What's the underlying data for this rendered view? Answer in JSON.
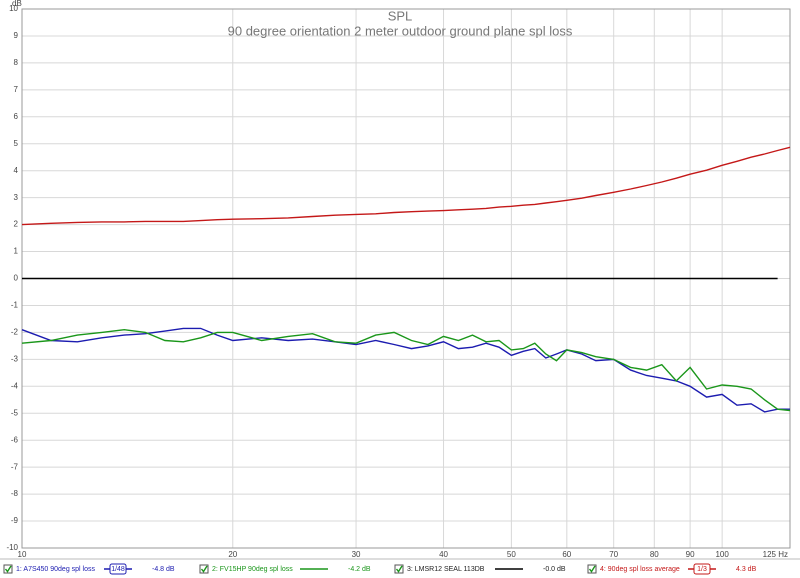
{
  "chart_data": {
    "type": "line",
    "title": "SPL",
    "subtitle": "90 degree orientation 2 meter outdoor ground plane spl loss",
    "y_label": "dB",
    "xscale": "log",
    "grid": true,
    "xlim": [
      10,
      125
    ],
    "ylim": [
      -10,
      10
    ],
    "xticks": [
      10,
      20,
      30,
      40,
      50,
      60,
      70,
      80,
      90,
      100,
      {
        "value": 125,
        "label": "125 Hz"
      }
    ],
    "yticks": [
      -10,
      -9,
      -8,
      -7,
      -6,
      -5,
      -4,
      -3,
      -2,
      -1,
      0,
      1,
      2,
      3,
      4,
      5,
      6,
      7,
      8,
      9,
      10
    ],
    "legend": "bottom",
    "x": [
      10,
      11,
      12,
      13,
      14,
      15,
      16,
      17,
      18,
      19,
      20,
      22,
      24,
      26,
      28,
      30,
      32,
      34,
      36,
      38,
      40,
      42,
      44,
      46,
      48,
      50,
      52,
      54,
      56,
      58,
      60,
      63,
      66,
      70,
      74,
      78,
      82,
      86,
      90,
      95,
      100,
      105,
      110,
      115,
      120,
      125
    ],
    "series": [
      {
        "name": "1: A7S450 90deg spl loss",
        "color": "#1c1cb0",
        "smoothing": "1/48",
        "legend_value": "-4.8 dB",
        "values": [
          -1.9,
          -2.3,
          -2.35,
          -2.2,
          -2.1,
          -2.05,
          -1.95,
          -1.85,
          -1.85,
          -2.1,
          -2.3,
          -2.2,
          -2.3,
          -2.25,
          -2.35,
          -2.45,
          -2.3,
          -2.45,
          -2.6,
          -2.5,
          -2.35,
          -2.6,
          -2.55,
          -2.4,
          -2.55,
          -2.85,
          -2.7,
          -2.6,
          -2.95,
          -2.8,
          -2.65,
          -2.8,
          -3.05,
          -3.0,
          -3.4,
          -3.6,
          -3.7,
          -3.8,
          -4.0,
          -4.4,
          -4.3,
          -4.7,
          -4.65,
          -4.95,
          -4.85,
          -4.85
        ]
      },
      {
        "name": "2: FV15HP 90deg spl loss",
        "color": "#1a961a",
        "legend_value": "-4.2 dB",
        "values": [
          -2.4,
          -2.3,
          -2.1,
          -2.0,
          -1.9,
          -2.0,
          -2.3,
          -2.35,
          -2.2,
          -2.0,
          -2.0,
          -2.3,
          -2.15,
          -2.05,
          -2.35,
          -2.4,
          -2.1,
          -2.0,
          -2.3,
          -2.45,
          -2.15,
          -2.3,
          -2.1,
          -2.35,
          -2.3,
          -2.65,
          -2.6,
          -2.4,
          -2.8,
          -3.05,
          -2.65,
          -2.75,
          -2.9,
          -3.0,
          -3.3,
          -3.4,
          -3.2,
          -3.8,
          -3.3,
          -4.1,
          -3.95,
          -4.0,
          -4.1,
          -4.5,
          -4.85,
          -4.9
        ]
      },
      {
        "name": "3: LMSR12 SEAL 113DB",
        "color": "#000000",
        "legend_value": "-0.0 dB",
        "values": [
          0,
          0,
          0,
          0,
          0,
          0,
          0,
          0,
          0,
          0,
          0,
          0,
          0,
          0,
          0,
          0,
          0,
          0,
          0,
          0,
          0,
          0,
          0,
          0,
          0,
          0,
          0,
          0,
          0,
          0,
          0,
          0,
          0,
          0,
          0,
          0,
          0,
          0,
          0,
          0,
          0,
          0,
          0,
          0,
          0,
          null
        ]
      },
      {
        "name": "4: 90deg spl loss average",
        "color": "#c41818",
        "smoothing": "1/3",
        "legend_value": "4.3 dB",
        "values": [
          2.0,
          2.05,
          2.08,
          2.1,
          2.1,
          2.12,
          2.12,
          2.12,
          2.15,
          2.18,
          2.2,
          2.22,
          2.25,
          2.3,
          2.35,
          2.38,
          2.4,
          2.45,
          2.48,
          2.5,
          2.52,
          2.55,
          2.57,
          2.6,
          2.65,
          2.68,
          2.72,
          2.75,
          2.8,
          2.85,
          2.9,
          2.98,
          3.08,
          3.2,
          3.32,
          3.45,
          3.58,
          3.72,
          3.87,
          4.02,
          4.2,
          4.35,
          4.5,
          4.62,
          4.75,
          4.87
        ]
      }
    ]
  }
}
